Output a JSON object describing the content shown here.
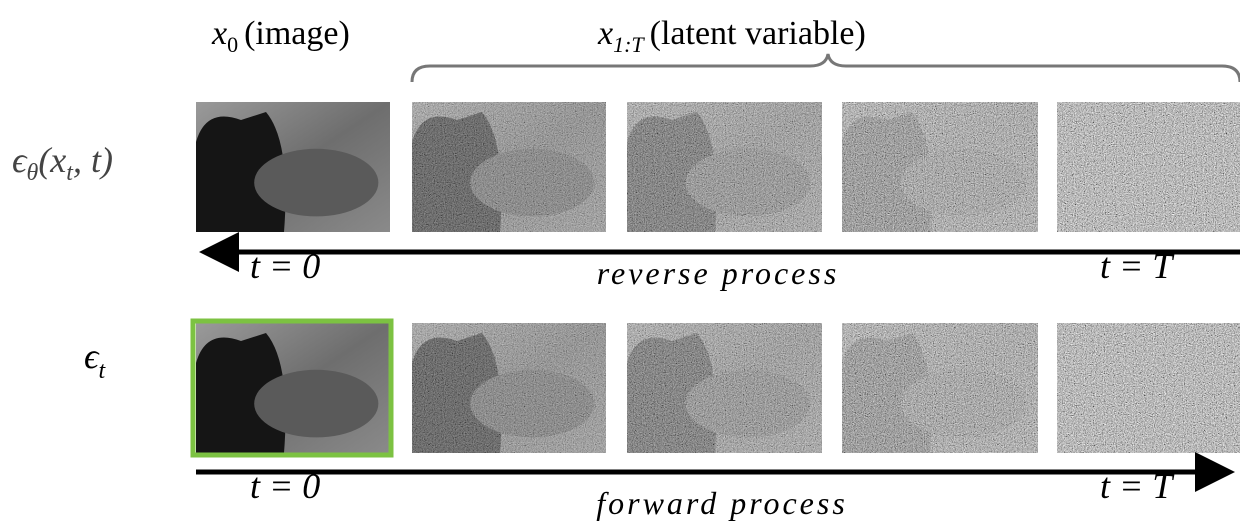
{
  "header": {
    "image": {
      "var": "x",
      "sub": "0",
      "text": "(image)"
    },
    "latent": {
      "var": "x",
      "sub": "1:T",
      "text": "(latent variable)"
    }
  },
  "rows": [
    {
      "label": {
        "symbol": "ϵ",
        "sub": "θ",
        "open": "(x",
        "arg_sub": "t",
        "close": ", t)"
      },
      "start": "t = 0",
      "process": "reverse process",
      "end": "t = T"
    },
    {
      "label": {
        "symbol": "ϵ",
        "sub": "t"
      },
      "start": "t = 0",
      "process": "forward process",
      "end": "t = T"
    }
  ]
}
